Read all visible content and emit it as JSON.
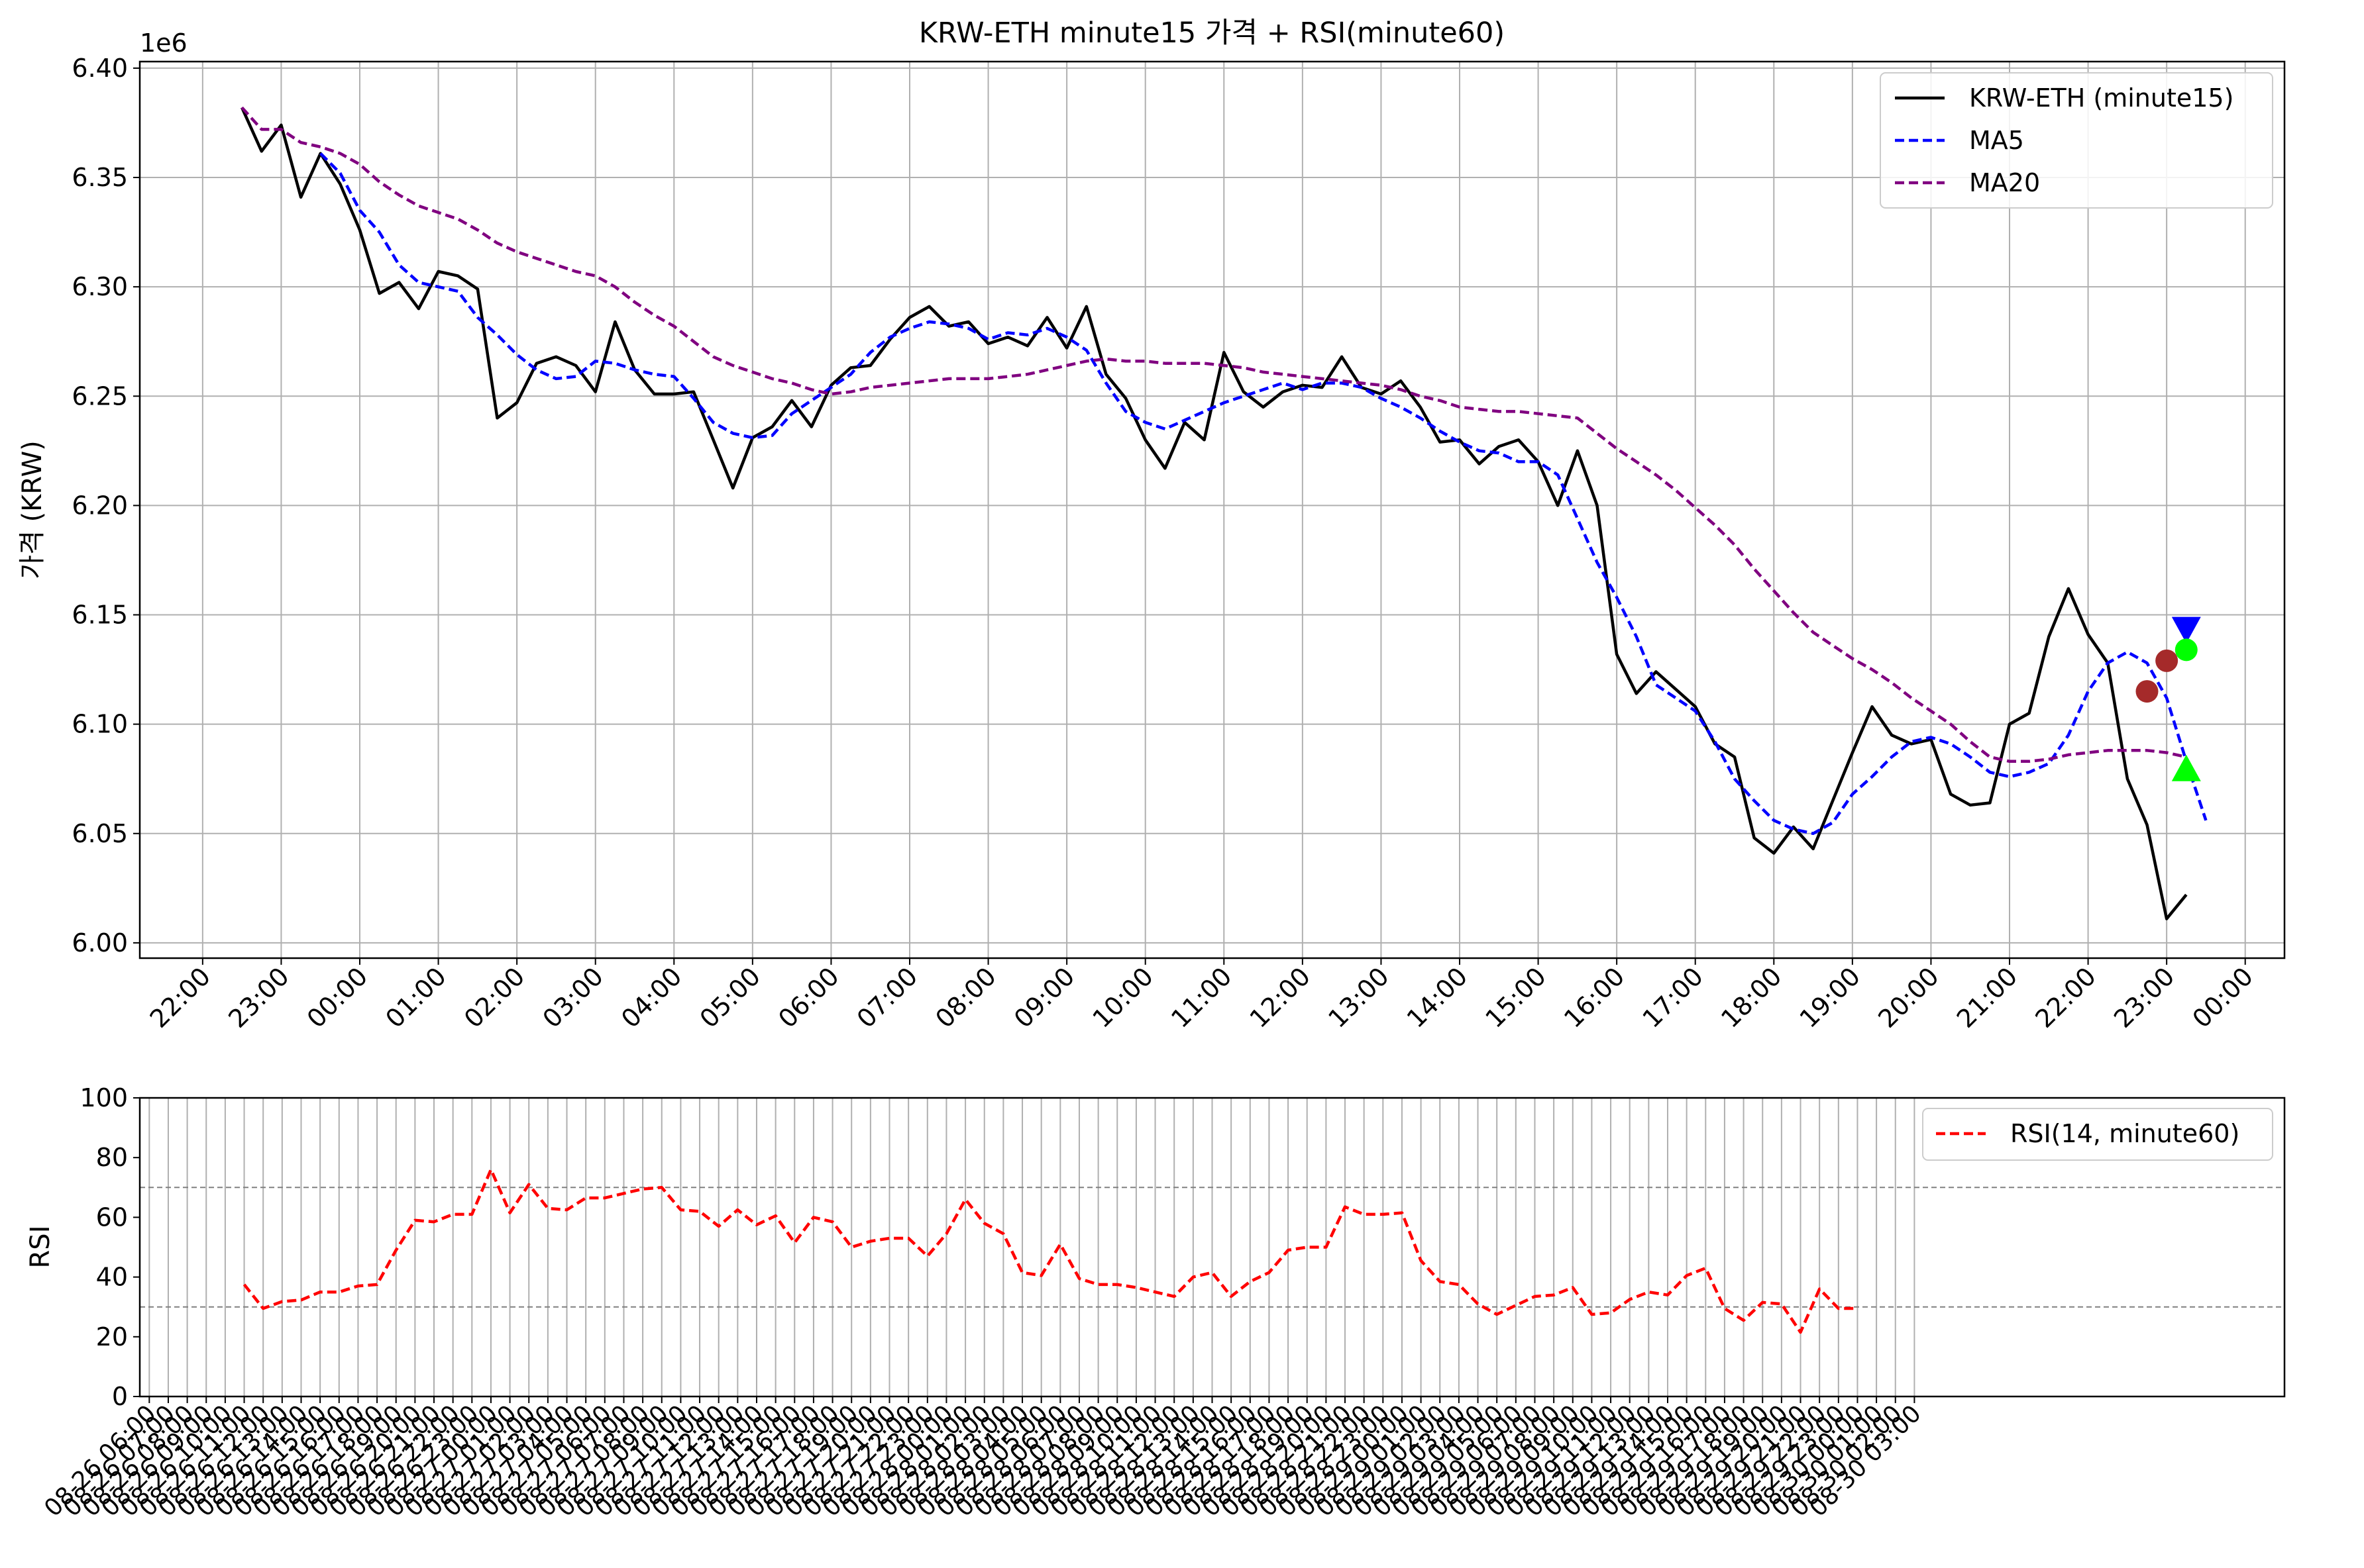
{
  "figure_title": "KRW-ETH minute15 가격 + RSI(minute60)",
  "chart_data": [
    {
      "type": "line",
      "title": "KRW-ETH minute15 가격 + RSI(minute60)",
      "ylabel": "가격 (KRW)",
      "xlabel": "",
      "y_offset_label": "1e6",
      "ylim": [
        5.993,
        6.403
      ],
      "yticks": [
        6.0,
        6.05,
        6.1,
        6.15,
        6.2,
        6.25,
        6.3,
        6.35,
        6.4
      ],
      "ytick_labels": [
        "6.00",
        "6.05",
        "6.10",
        "6.15",
        "6.20",
        "6.25",
        "6.30",
        "6.35",
        "6.40"
      ],
      "xtick_labels": [
        "22:00",
        "23:00",
        "00:00",
        "01:00",
        "02:00",
        "03:00",
        "04:00",
        "05:00",
        "06:00",
        "07:00",
        "08:00",
        "09:00",
        "10:00",
        "11:00",
        "12:00",
        "13:00",
        "14:00",
        "15:00",
        "16:00",
        "17:00",
        "18:00",
        "19:00",
        "20:00",
        "21:00",
        "22:00",
        "23:00",
        "00:00"
      ],
      "x_unit": "hours, 15-minute steps, first tick 22:00",
      "xlim": [
        -0.8,
        26.5
      ],
      "grid": true,
      "legend_position": "top-right",
      "series": [
        {
          "name": "KRW-ETH (minute15)",
          "color": "#000000",
          "style": "solid",
          "x_start": 0.5,
          "x_step": 0.25,
          "values": [
            6.382,
            6.362,
            6.374,
            6.341,
            6.361,
            6.347,
            6.326,
            6.297,
            6.302,
            6.29,
            6.307,
            6.305,
            6.299,
            6.24,
            6.247,
            6.265,
            6.268,
            6.264,
            6.252,
            6.284,
            6.262,
            6.251,
            6.251,
            6.252,
            6.23,
            6.208,
            6.231,
            6.236,
            6.248,
            6.236,
            6.255,
            6.263,
            6.264,
            6.276,
            6.286,
            6.291,
            6.282,
            6.284,
            6.274,
            6.277,
            6.273,
            6.286,
            6.272,
            6.291,
            6.26,
            6.249,
            6.23,
            6.217,
            6.238,
            6.23,
            6.27,
            6.252,
            6.245,
            6.252,
            6.255,
            6.254,
            6.268,
            6.254,
            6.251,
            6.257,
            6.245,
            6.229,
            6.23,
            6.219,
            6.227,
            6.23,
            6.22,
            6.2,
            6.225,
            6.2,
            6.132,
            6.114,
            6.124,
            6.116,
            6.108,
            6.091,
            6.085,
            6.048,
            6.041,
            6.053,
            6.043,
            6.065,
            6.087,
            6.108,
            6.095,
            6.091,
            6.093,
            6.068,
            6.063,
            6.064,
            6.1,
            6.105,
            6.14,
            6.162,
            6.141,
            6.128,
            6.075,
            6.054,
            6.011,
            6.022
          ]
        },
        {
          "name": "MA5",
          "color": "#0000ff",
          "style": "dashed",
          "x_start": 1.5,
          "x_step": 0.25,
          "values": [
            6.361,
            6.352,
            6.335,
            6.325,
            6.31,
            6.302,
            6.3,
            6.298,
            6.286,
            6.278,
            6.269,
            6.262,
            6.258,
            6.259,
            6.266,
            6.265,
            6.262,
            6.26,
            6.259,
            6.249,
            6.238,
            6.233,
            6.231,
            6.232,
            6.242,
            6.248,
            6.254,
            6.26,
            6.27,
            6.277,
            6.281,
            6.284,
            6.283,
            6.281,
            6.276,
            6.279,
            6.278,
            6.281,
            6.277,
            6.271,
            6.256,
            6.243,
            6.238,
            6.235,
            6.239,
            6.243,
            6.247,
            6.25,
            6.253,
            6.256,
            6.253,
            6.256,
            6.256,
            6.254,
            6.249,
            6.245,
            6.24,
            6.234,
            6.229,
            6.225,
            6.224,
            6.22,
            6.22,
            6.214,
            6.194,
            6.174,
            6.158,
            6.14,
            6.118,
            6.112,
            6.106,
            6.092,
            6.075,
            6.065,
            6.056,
            6.052,
            6.05,
            6.055,
            6.068,
            6.076,
            6.085,
            6.092,
            6.094,
            6.091,
            6.085,
            6.078,
            6.076,
            6.078,
            6.082,
            6.095,
            6.115,
            6.128,
            6.133,
            6.128,
            6.112,
            6.083,
            6.056
          ]
        },
        {
          "name": "MA20",
          "color": "#800080",
          "style": "dashed",
          "x_start": 0.5,
          "x_step": 0.25,
          "values": [
            6.382,
            6.372,
            6.372,
            6.366,
            6.364,
            6.361,
            6.356,
            6.348,
            6.342,
            6.337,
            6.334,
            6.331,
            6.326,
            6.32,
            6.316,
            6.313,
            6.31,
            6.307,
            6.305,
            6.3,
            6.293,
            6.287,
            6.282,
            6.275,
            6.268,
            6.264,
            6.261,
            6.258,
            6.256,
            6.253,
            6.251,
            6.252,
            6.254,
            6.255,
            6.256,
            6.257,
            6.258,
            6.258,
            6.258,
            6.259,
            6.26,
            6.262,
            6.264,
            6.266,
            6.267,
            6.266,
            6.266,
            6.265,
            6.265,
            6.265,
            6.264,
            6.263,
            6.261,
            6.26,
            6.259,
            6.258,
            6.257,
            6.256,
            6.255,
            6.253,
            6.25,
            6.248,
            6.245,
            6.244,
            6.243,
            6.243,
            6.242,
            6.241,
            6.24,
            6.233,
            6.226,
            6.22,
            6.214,
            6.207,
            6.199,
            6.191,
            6.182,
            6.171,
            6.161,
            6.151,
            6.142,
            6.136,
            6.13,
            6.125,
            6.119,
            6.112,
            6.106,
            6.1,
            6.092,
            6.085,
            6.083,
            6.083,
            6.084,
            6.086,
            6.087,
            6.088,
            6.088,
            6.088,
            6.087,
            6.085
          ]
        }
      ],
      "markers": [
        {
          "shape": "circle",
          "color": "#a52a2a",
          "x": 24.75,
          "y": 6.115
        },
        {
          "shape": "circle",
          "color": "#a52a2a",
          "x": 25.0,
          "y": 6.129
        },
        {
          "shape": "triangle-down",
          "color": "#0000ff",
          "x": 25.25,
          "y": 6.143
        },
        {
          "shape": "circle",
          "color": "#00ff00",
          "x": 25.25,
          "y": 6.134
        },
        {
          "shape": "triangle-up",
          "color": "#00ff00",
          "x": 25.25,
          "y": 6.08
        }
      ]
    },
    {
      "type": "line",
      "title": "",
      "ylabel": "RSI",
      "xlabel": "",
      "ylim": [
        0,
        100
      ],
      "yticks": [
        0,
        20,
        40,
        60,
        80,
        100
      ],
      "reference_lines": [
        70,
        30
      ],
      "x_unit": "hourly index, first tick 08-26 06:00",
      "xlim": [
        -0.5,
        112.5
      ],
      "xtick_labels": [
        "08-26 06:00",
        "08-26 07:00",
        "08-26 08:00",
        "08-26 09:00",
        "08-26 10:00",
        "08-26 11:00",
        "08-26 12:00",
        "08-26 13:00",
        "08-26 14:00",
        "08-26 15:00",
        "08-26 16:00",
        "08-26 17:00",
        "08-26 18:00",
        "08-26 19:00",
        "08-26 20:00",
        "08-26 21:00",
        "08-26 22:00",
        "08-26 23:00",
        "08-27 00:00",
        "08-27 01:00",
        "08-27 02:00",
        "08-27 03:00",
        "08-27 04:00",
        "08-27 05:00",
        "08-27 06:00",
        "08-27 07:00",
        "08-27 08:00",
        "08-27 09:00",
        "08-27 10:00",
        "08-27 11:00",
        "08-27 12:00",
        "08-27 13:00",
        "08-27 14:00",
        "08-27 15:00",
        "08-27 16:00",
        "08-27 17:00",
        "08-27 18:00",
        "08-27 19:00",
        "08-27 20:00",
        "08-27 21:00",
        "08-27 22:00",
        "08-27 23:00",
        "08-28 00:00",
        "08-28 01:00",
        "08-28 02:00",
        "08-28 03:00",
        "08-28 04:00",
        "08-28 05:00",
        "08-28 06:00",
        "08-28 07:00",
        "08-28 08:00",
        "08-28 09:00",
        "08-28 10:00",
        "08-28 11:00",
        "08-28 12:00",
        "08-28 13:00",
        "08-28 14:00",
        "08-28 15:00",
        "08-28 16:00",
        "08-28 17:00",
        "08-28 18:00",
        "08-28 19:00",
        "08-28 20:00",
        "08-28 21:00",
        "08-28 22:00",
        "08-28 23:00",
        "08-29 00:00",
        "08-29 01:00",
        "08-29 02:00",
        "08-29 03:00",
        "08-29 04:00",
        "08-29 05:00",
        "08-29 06:00",
        "08-29 07:00",
        "08-29 08:00",
        "08-29 09:00",
        "08-29 10:00",
        "08-29 11:00",
        "08-29 12:00",
        "08-29 13:00",
        "08-29 14:00",
        "08-29 15:00",
        "08-29 16:00",
        "08-29 17:00",
        "08-29 18:00",
        "08-29 19:00",
        "08-29 20:00",
        "08-29 21:00",
        "08-29 22:00",
        "08-29 23:00",
        "08-30 00:00",
        "08-30 01:00",
        "08-30 02:00",
        "08-30 03:00"
      ],
      "grid": true,
      "legend_position": "top-right",
      "series": [
        {
          "name": "RSI(14, minute60)",
          "color": "#ff0000",
          "style": "dashed",
          "x_start": 5,
          "x_step": 1,
          "values": [
            37.5,
            29.5,
            31.8,
            32.3,
            35,
            35,
            37,
            37.5,
            49,
            59,
            58.5,
            61,
            61,
            76,
            61.5,
            71,
            63,
            62.5,
            66.5,
            66.5,
            68,
            69.5,
            70,
            62.5,
            62,
            57,
            62.5,
            57.5,
            60.5,
            51.5,
            60,
            58.5,
            50,
            52,
            53,
            53,
            47,
            54.5,
            66,
            58,
            54.5,
            41.5,
            40.5,
            51,
            39.5,
            37.5,
            37.5,
            36.5,
            35,
            33.5,
            40,
            41.5,
            33.5,
            38.5,
            41.5,
            49,
            50,
            50,
            63.5,
            61,
            61,
            61.5,
            45.5,
            38.5,
            37.5,
            31,
            27.5,
            30.5,
            33.5,
            34,
            36.5,
            27.5,
            28,
            32.5,
            35,
            34,
            40.5,
            43,
            29.5,
            25.5,
            31.5,
            31,
            21.5,
            36,
            29.5,
            29.5
          ]
        }
      ]
    }
  ]
}
